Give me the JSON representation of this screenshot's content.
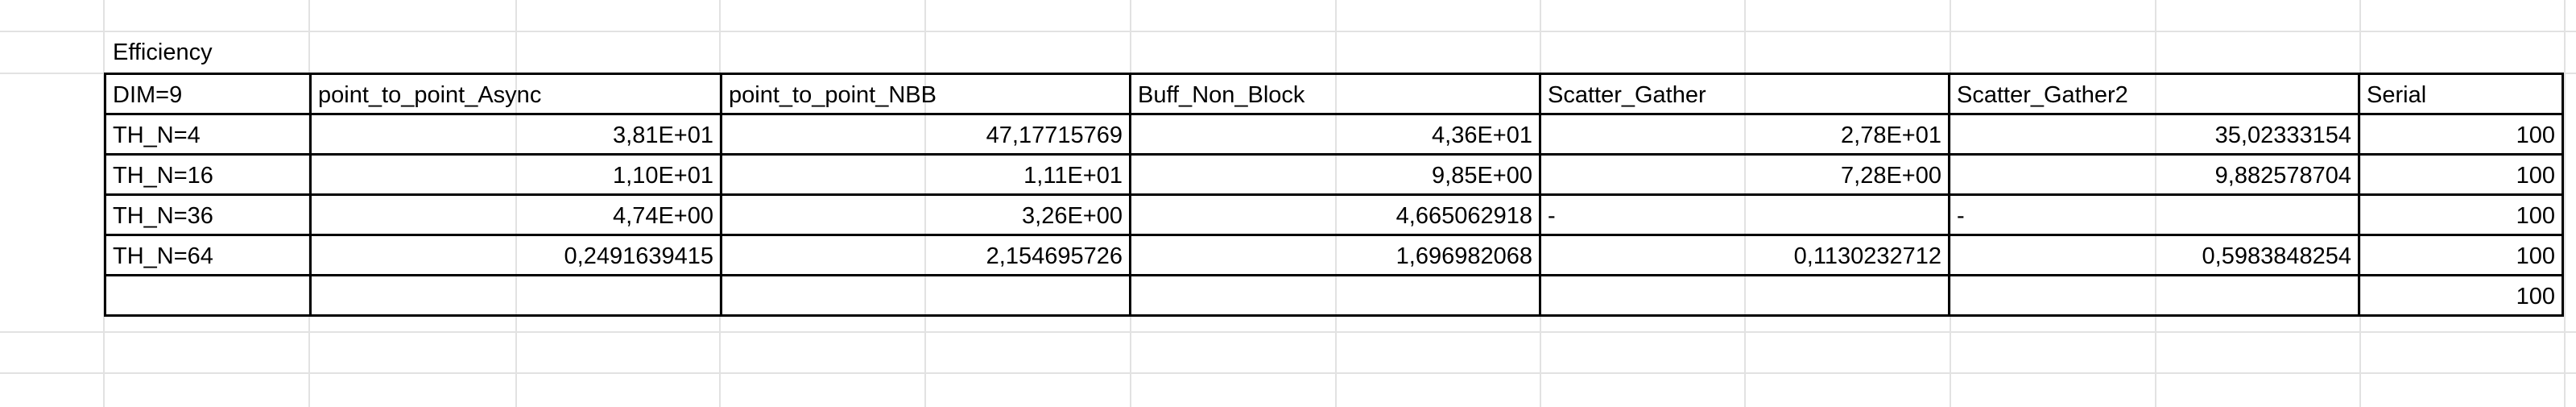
{
  "sheet": {
    "title": "Efficiency",
    "header": [
      "DIM=9",
      "point_to_point_Async",
      "point_to_point_NBB",
      "Buff_Non_Block",
      "Scatter_Gather",
      "Scatter_Gather2",
      "Serial"
    ],
    "rows": [
      [
        "TH_N=4",
        "3,81E+01",
        "47,17715769",
        "4,36E+01",
        "2,78E+01",
        "35,02333154",
        "100"
      ],
      [
        "TH_N=16",
        "1,10E+01",
        "1,11E+01",
        "9,85E+00",
        "7,28E+00",
        "9,882578704",
        "100"
      ],
      [
        "TH_N=36",
        "4,74E+00",
        "3,26E+00",
        "4,665062918",
        "-",
        "-",
        "100"
      ],
      [
        "TH_N=64",
        "0,2491639415",
        "2,154695726",
        "1,696982068",
        "0,1130232712",
        "0,5983848254",
        "100"
      ],
      [
        "",
        "",
        "",
        "",
        "",
        "",
        "100"
      ]
    ]
  }
}
